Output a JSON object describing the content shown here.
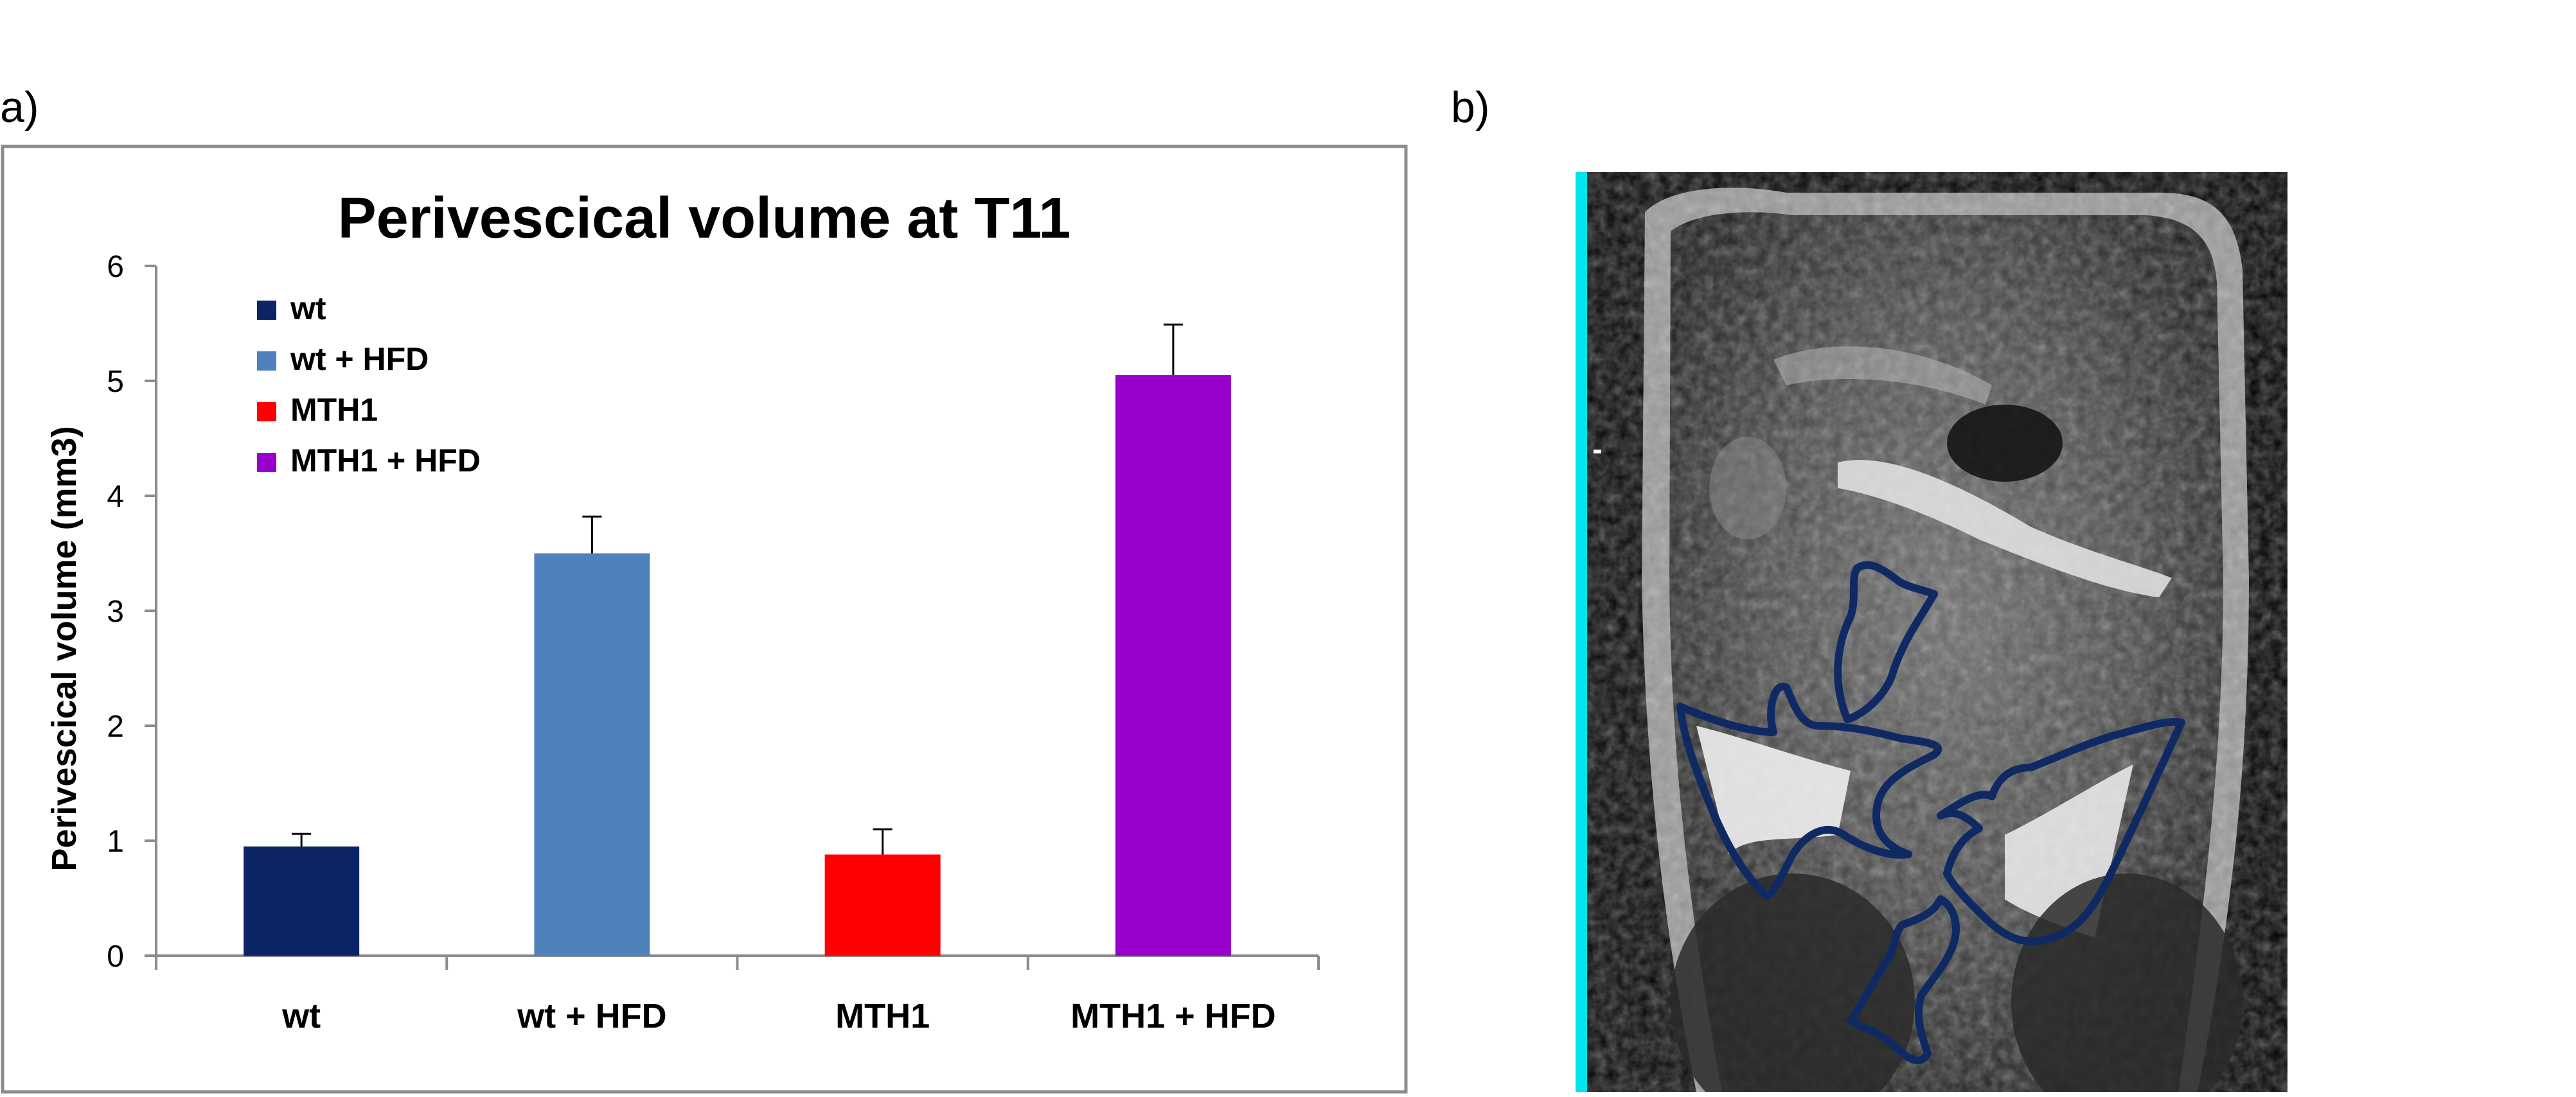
{
  "panel_labels": {
    "a": "a)",
    "b": "b)"
  },
  "colors": {
    "wt": "#0B2466",
    "wt_hfd": "#4F81BD",
    "mth1": "#FF0000",
    "mth1_hfd": "#9900CC",
    "mri_outline": "#0F2A63",
    "mri_edge": "#00E5F0"
  },
  "chart_data": {
    "type": "bar",
    "title": "Perivescical volume at T11",
    "xlabel": "",
    "ylabel": "Perivescical volume (mm3)",
    "ylim": [
      0,
      6
    ],
    "yticks": [
      0,
      1,
      2,
      3,
      4,
      5,
      6
    ],
    "grid": false,
    "legend_position": "top-left",
    "categories": [
      "wt",
      "wt + HFD",
      "MTH1",
      "MTH1 + HFD"
    ],
    "values": [
      0.95,
      3.5,
      0.88,
      5.05
    ],
    "errors": [
      0.11,
      0.32,
      0.22,
      0.44
    ],
    "legend": [
      "wt",
      "wt + HFD",
      "MTH1",
      "MTH1 + HFD"
    ]
  },
  "image_panel": {
    "description_icon": "mri-scan-image"
  }
}
